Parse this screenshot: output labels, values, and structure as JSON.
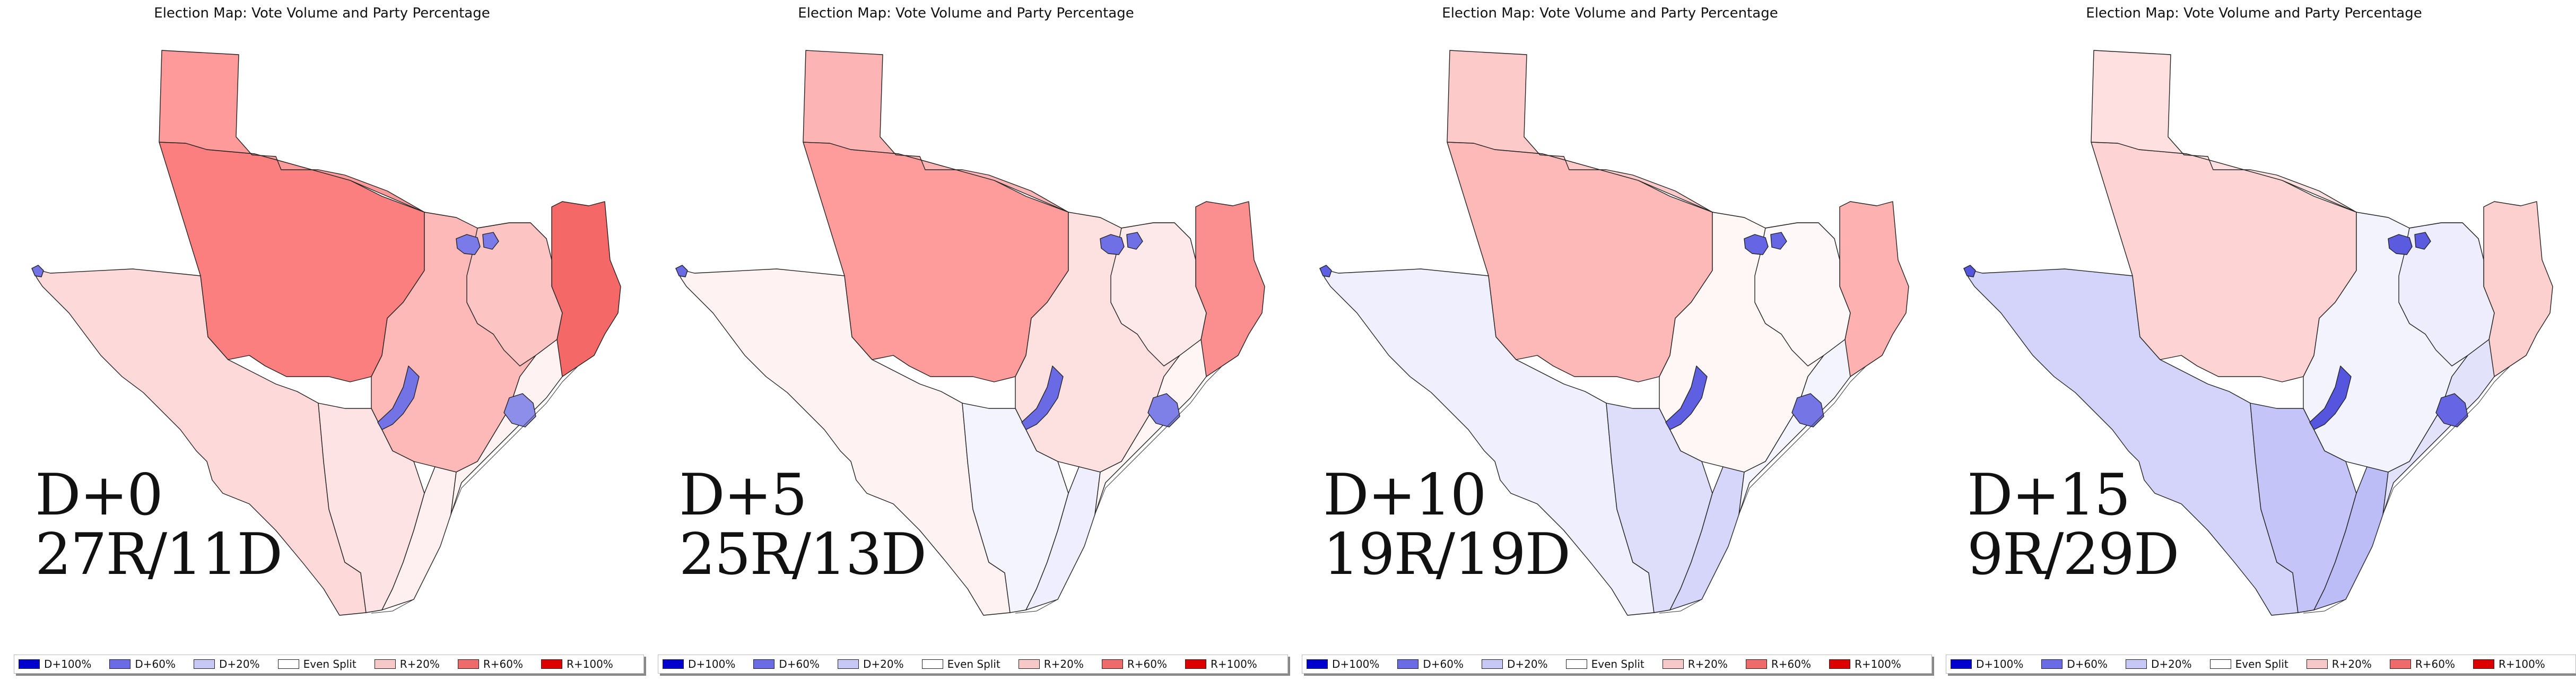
{
  "title": "Election Map: Vote Volume and Party Percentage",
  "legend": [
    {
      "label": "D+100%",
      "color": "#0000cc"
    },
    {
      "label": "D+60%",
      "color": "#6b6be6"
    },
    {
      "label": "D+20%",
      "color": "#c8c8f6"
    },
    {
      "label": "Even Split",
      "color": "#ffffff"
    },
    {
      "label": "R+20%",
      "color": "#f6c8c8"
    },
    {
      "label": "R+60%",
      "color": "#ee6b6b"
    },
    {
      "label": "R+100%",
      "color": "#dd0000"
    }
  ],
  "panels": [
    {
      "shift": "D+0",
      "result": "27R/11D",
      "colors": {
        "w": "#fb7f7f",
        "nw": "#fe9a9a",
        "sw": "#fed9d9",
        "c": "#fdb8b8",
        "e": "#f46868",
        "s1": "#fde3e3",
        "s2": "#fef0f0",
        "s3": "#fef2f2",
        "m": "#fdc4c4",
        "dfw": "#7a7ae8",
        "hou": "#8d8dea",
        "aus": "#7373e6"
      }
    },
    {
      "shift": "D+5",
      "result": "25R/13D",
      "colors": {
        "w": "#fe9b9b",
        "nw": "#fdb4b4",
        "sw": "#fff2f2",
        "c": "#fde0e0",
        "e": "#fb8f8f",
        "s1": "#f4f4fe",
        "s2": "#eeeefe",
        "s3": "#fff5f5",
        "m": "#fde9e9",
        "dfw": "#7070e6",
        "hou": "#7f7fe8",
        "aus": "#6a6ae4"
      }
    },
    {
      "shift": "D+10",
      "result": "19R/19D",
      "colors": {
        "w": "#fdb8b8",
        "nw": "#fdcaca",
        "sw": "#efeffd",
        "c": "#fff6f6",
        "e": "#fdb1b1",
        "s1": "#dedefb",
        "s2": "#d6d6fa",
        "s3": "#f4f4fe",
        "m": "#fff8f8",
        "dfw": "#6666e4",
        "hou": "#7575e6",
        "aus": "#5f5fe2"
      }
    },
    {
      "shift": "D+15",
      "result": "9R/29D",
      "colors": {
        "w": "#fed3d3",
        "nw": "#fee0e0",
        "sw": "#d4d4fa",
        "c": "#f3f3fe",
        "e": "#fdd0d0",
        "s1": "#c4c4f8",
        "s2": "#bcbcf6",
        "s3": "#e2e2fb",
        "m": "#ededfd",
        "dfw": "#5b5be0",
        "hou": "#6666e4",
        "aus": "#5555de"
      }
    }
  ]
}
